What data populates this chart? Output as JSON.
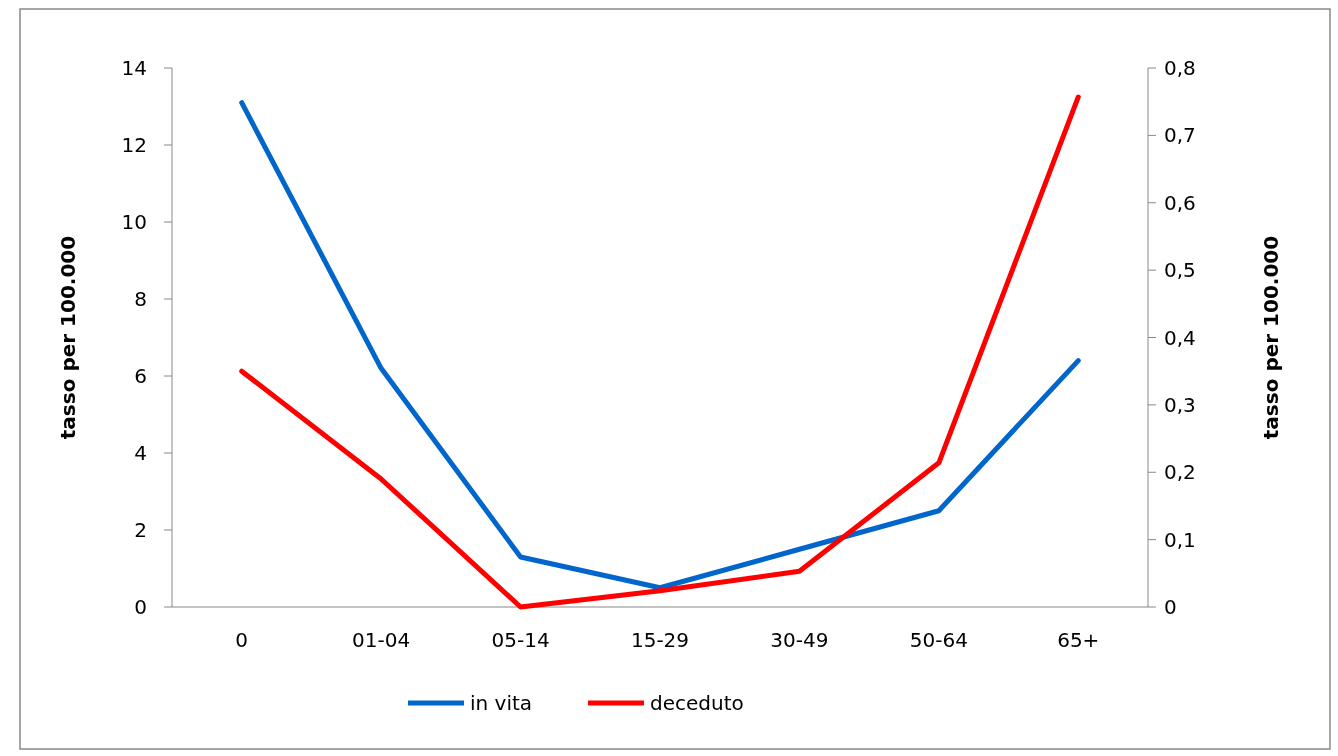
{
  "chart_data": {
    "type": "line",
    "categories": [
      "0",
      "01-04",
      "05-14",
      "15-29",
      "30-49",
      "50-64",
      "65+"
    ],
    "series": [
      {
        "name": "in vita",
        "color": "#0066cc",
        "values": [
          13.1,
          6.2,
          1.3,
          0.5,
          1.5,
          2.5,
          6.4
        ]
      },
      {
        "name": "deceduto",
        "color": "#ff0000",
        "axis": "y2",
        "values": [
          0.35,
          0.19,
          0,
          0.024,
          0.053,
          0.214,
          0.757
        ]
      }
    ],
    "ylabel": "tasso per 100.000",
    "y2label": "tasso per 100.000",
    "ylim": [
      0,
      14
    ],
    "yticks": [
      0,
      2,
      4,
      6,
      8,
      10,
      12,
      14
    ],
    "y2lim": [
      0,
      0.8
    ],
    "y2ticks": [
      0,
      {
        "value": 0.1,
        "label": "0,1"
      },
      {
        "value": 0.2,
        "label": "0,2"
      },
      {
        "value": 0.3,
        "label": "0,3"
      },
      {
        "value": 0.4,
        "label": "0,4"
      },
      {
        "value": 0.5,
        "label": "0,5"
      },
      {
        "value": 0.6,
        "label": "0,6"
      },
      {
        "value": 0.7,
        "label": "0,7"
      },
      {
        "value": 0.8,
        "label": "0,8"
      }
    ],
    "legend": "bottom",
    "grid": false,
    "marker": "none",
    "line_style": "solid"
  }
}
